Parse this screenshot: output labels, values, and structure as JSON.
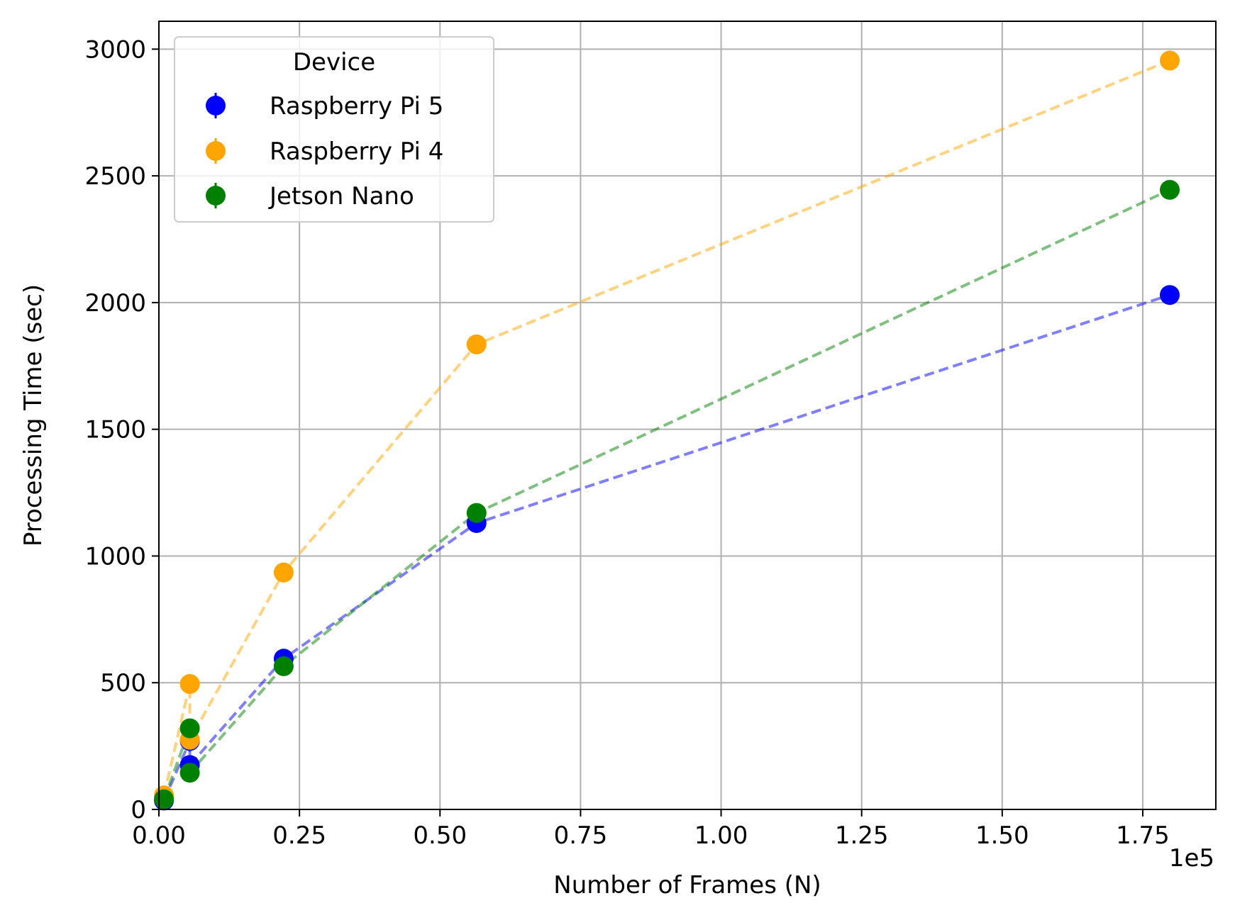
{
  "chart_data": {
    "type": "scatter",
    "title": "",
    "xlabel": "Number of Frames (N)",
    "ylabel": "Processing Time (sec)",
    "x_offset_label": "1e5",
    "x_scale_factor": 100000,
    "xlim": [
      0,
      1.88
    ],
    "ylim": [
      0,
      3110
    ],
    "x_ticks": [
      0.0,
      0.25,
      0.5,
      0.75,
      1.0,
      1.25,
      1.5,
      1.75
    ],
    "x_tick_labels": [
      "0.00",
      "0.25",
      "0.50",
      "0.75",
      "1.00",
      "1.25",
      "1.50",
      "1.75"
    ],
    "y_ticks": [
      0,
      500,
      1000,
      1500,
      2000,
      2500,
      3000
    ],
    "y_tick_labels": [
      "0",
      "500",
      "1000",
      "1500",
      "2000",
      "2500",
      "3000"
    ],
    "grid": true,
    "legend": {
      "title": "Device",
      "placement": "upper-left"
    },
    "series": [
      {
        "name": "Raspberry Pi 5",
        "color": "#0000ff",
        "line_style": "dashed",
        "x": [
          0.009,
          0.055,
          0.055,
          0.222,
          0.565,
          1.798
        ],
        "y": [
          35,
          270,
          175,
          595,
          1130,
          2030
        ]
      },
      {
        "name": "Raspberry Pi 4",
        "color": "#ffa500",
        "line_style": "dashed",
        "x": [
          0.009,
          0.055,
          0.055,
          0.222,
          0.565,
          1.798
        ],
        "y": [
          55,
          495,
          275,
          935,
          1835,
          2955
        ]
      },
      {
        "name": "Jetson Nano",
        "color": "#008000",
        "line_style": "dashed",
        "x": [
          0.009,
          0.055,
          0.055,
          0.222,
          0.565,
          1.798
        ],
        "y": [
          40,
          320,
          145,
          565,
          1170,
          2445
        ]
      }
    ]
  }
}
